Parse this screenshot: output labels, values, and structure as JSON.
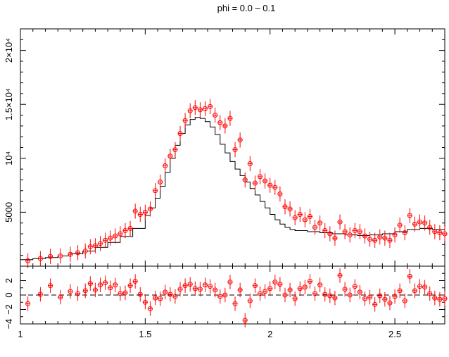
{
  "chart_data": [
    {
      "type": "scatter",
      "panel": "spectrum",
      "title": "phi = 0.0 – 0.1",
      "xlabel": "",
      "ylabel": "",
      "xlim": [
        1.0,
        2.7
      ],
      "ylim": [
        0,
        22000
      ],
      "y_ticks": [
        {
          "value": 5000,
          "label": "5000"
        },
        {
          "value": 10000,
          "label": "10⁴"
        },
        {
          "value": 15000,
          "label": "1.5×10⁴"
        },
        {
          "value": 20000,
          "label": "2×10⁴"
        }
      ],
      "grid": false,
      "series": [
        {
          "kind": "data",
          "color": "#ff0000",
          "marker": "open-circle",
          "x": [
            1.03,
            1.08,
            1.12,
            1.16,
            1.2,
            1.23,
            1.26,
            1.28,
            1.3,
            1.32,
            1.34,
            1.36,
            1.38,
            1.4,
            1.42,
            1.44,
            1.46,
            1.48,
            1.5,
            1.52,
            1.54,
            1.56,
            1.58,
            1.6,
            1.62,
            1.64,
            1.66,
            1.68,
            1.7,
            1.72,
            1.74,
            1.76,
            1.78,
            1.8,
            1.82,
            1.84,
            1.86,
            1.88,
            1.9,
            1.92,
            1.94,
            1.96,
            1.98,
            2.0,
            2.02,
            2.04,
            2.06,
            2.08,
            2.1,
            2.12,
            2.14,
            2.16,
            2.18,
            2.2,
            2.22,
            2.24,
            2.26,
            2.28,
            2.3,
            2.32,
            2.34,
            2.36,
            2.38,
            2.4,
            2.42,
            2.44,
            2.46,
            2.48,
            2.5,
            2.52,
            2.54,
            2.56,
            2.58,
            2.6,
            2.62,
            2.64,
            2.66,
            2.68,
            2.7
          ],
          "y": [
            500,
            700,
            900,
            950,
            1100,
            1250,
            1400,
            1800,
            1900,
            2100,
            2400,
            2600,
            2800,
            3000,
            3300,
            3500,
            5100,
            4800,
            5000,
            5300,
            7000,
            7800,
            9300,
            10200,
            10800,
            12300,
            13500,
            14400,
            14700,
            14500,
            14600,
            14800,
            14000,
            13300,
            13000,
            13700,
            10800,
            11700,
            8000,
            9500,
            7700,
            8300,
            7900,
            7500,
            7300,
            6700,
            5500,
            5300,
            4500,
            4800,
            4300,
            4600,
            3600,
            4000,
            3300,
            3000,
            2600,
            4100,
            3200,
            2900,
            3300,
            3200,
            2800,
            2500,
            2400,
            2700,
            2600,
            2400,
            2900,
            3800,
            3100,
            4700,
            3900,
            4100,
            4000,
            3600,
            3200,
            3100,
            3000
          ],
          "xerr": 0.01,
          "yerr": 700
        },
        {
          "kind": "model",
          "color": "#000000",
          "style": "step",
          "x": [
            1.0,
            1.05,
            1.1,
            1.15,
            1.2,
            1.25,
            1.3,
            1.35,
            1.4,
            1.45,
            1.5,
            1.52,
            1.54,
            1.56,
            1.58,
            1.6,
            1.62,
            1.64,
            1.66,
            1.68,
            1.7,
            1.72,
            1.74,
            1.76,
            1.78,
            1.8,
            1.82,
            1.84,
            1.86,
            1.88,
            1.9,
            1.92,
            1.94,
            1.96,
            1.98,
            2.0,
            2.02,
            2.04,
            2.06,
            2.08,
            2.1,
            2.15,
            2.2,
            2.25,
            2.3,
            2.35,
            2.4,
            2.45,
            2.5,
            2.55,
            2.6,
            2.65,
            2.7
          ],
          "y": [
            600,
            700,
            800,
            950,
            1150,
            1400,
            1750,
            2200,
            2750,
            3500,
            4700,
            5400,
            6300,
            7400,
            8700,
            10000,
            11200,
            12300,
            13100,
            13600,
            13800,
            13700,
            13400,
            12900,
            12200,
            11300,
            10500,
            9700,
            9000,
            8400,
            7800,
            7200,
            6600,
            6000,
            5400,
            4800,
            4300,
            3900,
            3600,
            3400,
            3300,
            3200,
            3100,
            3000,
            2900,
            2850,
            2900,
            3000,
            3200,
            3400,
            3500,
            3400,
            3200
          ]
        }
      ]
    },
    {
      "type": "scatter",
      "panel": "residuals",
      "xlabel": "",
      "ylabel": "",
      "xlim": [
        1.0,
        2.7
      ],
      "ylim": [
        -4,
        4
      ],
      "x_ticks": [
        {
          "value": 1,
          "label": "1"
        },
        {
          "value": 1.5,
          "label": "1.5"
        },
        {
          "value": 2,
          "label": "2"
        },
        {
          "value": 2.5,
          "label": "2.5"
        }
      ],
      "y_ticks": [
        {
          "value": -4,
          "label": "−4"
        },
        {
          "value": -2,
          "label": "−2"
        },
        {
          "value": 0,
          "label": "0"
        },
        {
          "value": 2,
          "label": "2"
        }
      ],
      "reference_line": {
        "y": 0,
        "style": "dashed",
        "color": "#000000"
      },
      "series": [
        {
          "kind": "residuals",
          "color": "#ff0000",
          "marker": "open-circle",
          "x": [
            1.03,
            1.08,
            1.12,
            1.16,
            1.2,
            1.23,
            1.26,
            1.28,
            1.3,
            1.32,
            1.34,
            1.36,
            1.38,
            1.4,
            1.42,
            1.44,
            1.46,
            1.48,
            1.5,
            1.52,
            1.54,
            1.56,
            1.58,
            1.6,
            1.62,
            1.64,
            1.66,
            1.68,
            1.7,
            1.72,
            1.74,
            1.76,
            1.78,
            1.8,
            1.82,
            1.84,
            1.86,
            1.88,
            1.9,
            1.92,
            1.94,
            1.96,
            1.98,
            2.0,
            2.02,
            2.04,
            2.06,
            2.08,
            2.1,
            2.12,
            2.14,
            2.16,
            2.18,
            2.2,
            2.22,
            2.24,
            2.26,
            2.28,
            2.3,
            2.32,
            2.34,
            2.36,
            2.38,
            2.4,
            2.42,
            2.44,
            2.46,
            2.48,
            2.5,
            2.52,
            2.54,
            2.56,
            2.58,
            2.6,
            2.62,
            2.64,
            2.66,
            2.68,
            2.7
          ],
          "y": [
            -1.2,
            0.1,
            1.3,
            -0.3,
            0.5,
            0.2,
            0.6,
            1.6,
            0.7,
            1.4,
            1.7,
            1.0,
            1.4,
            0.2,
            0.3,
            1.3,
            1.9,
            0.1,
            -1.0,
            -1.9,
            -0.4,
            -0.5,
            0.4,
            0.1,
            -0.2,
            0.8,
            1.3,
            1.5,
            0.9,
            0.8,
            1.4,
            1.2,
            0.7,
            -0.2,
            0.0,
            1.8,
            -1.2,
            0.7,
            -3.5,
            -0.8,
            1.3,
            0.2,
            0.5,
            0.9,
            1.8,
            1.5,
            0.0,
            0.7,
            -0.5,
            0.9,
            1.1,
            1.9,
            0.2,
            1.4,
            0.1,
            -0.1,
            -0.4,
            2.7,
            0.8,
            0.0,
            1.2,
            0.4,
            -0.5,
            -0.3,
            -1.3,
            -0.1,
            -0.6,
            -1.1,
            -0.2,
            0.6,
            -0.8,
            2.6,
            0.6,
            1.2,
            1.1,
            0.2,
            -0.4,
            -0.6,
            -0.5
          ],
          "xerr": 0.01,
          "yerr": 1
        }
      ]
    }
  ]
}
